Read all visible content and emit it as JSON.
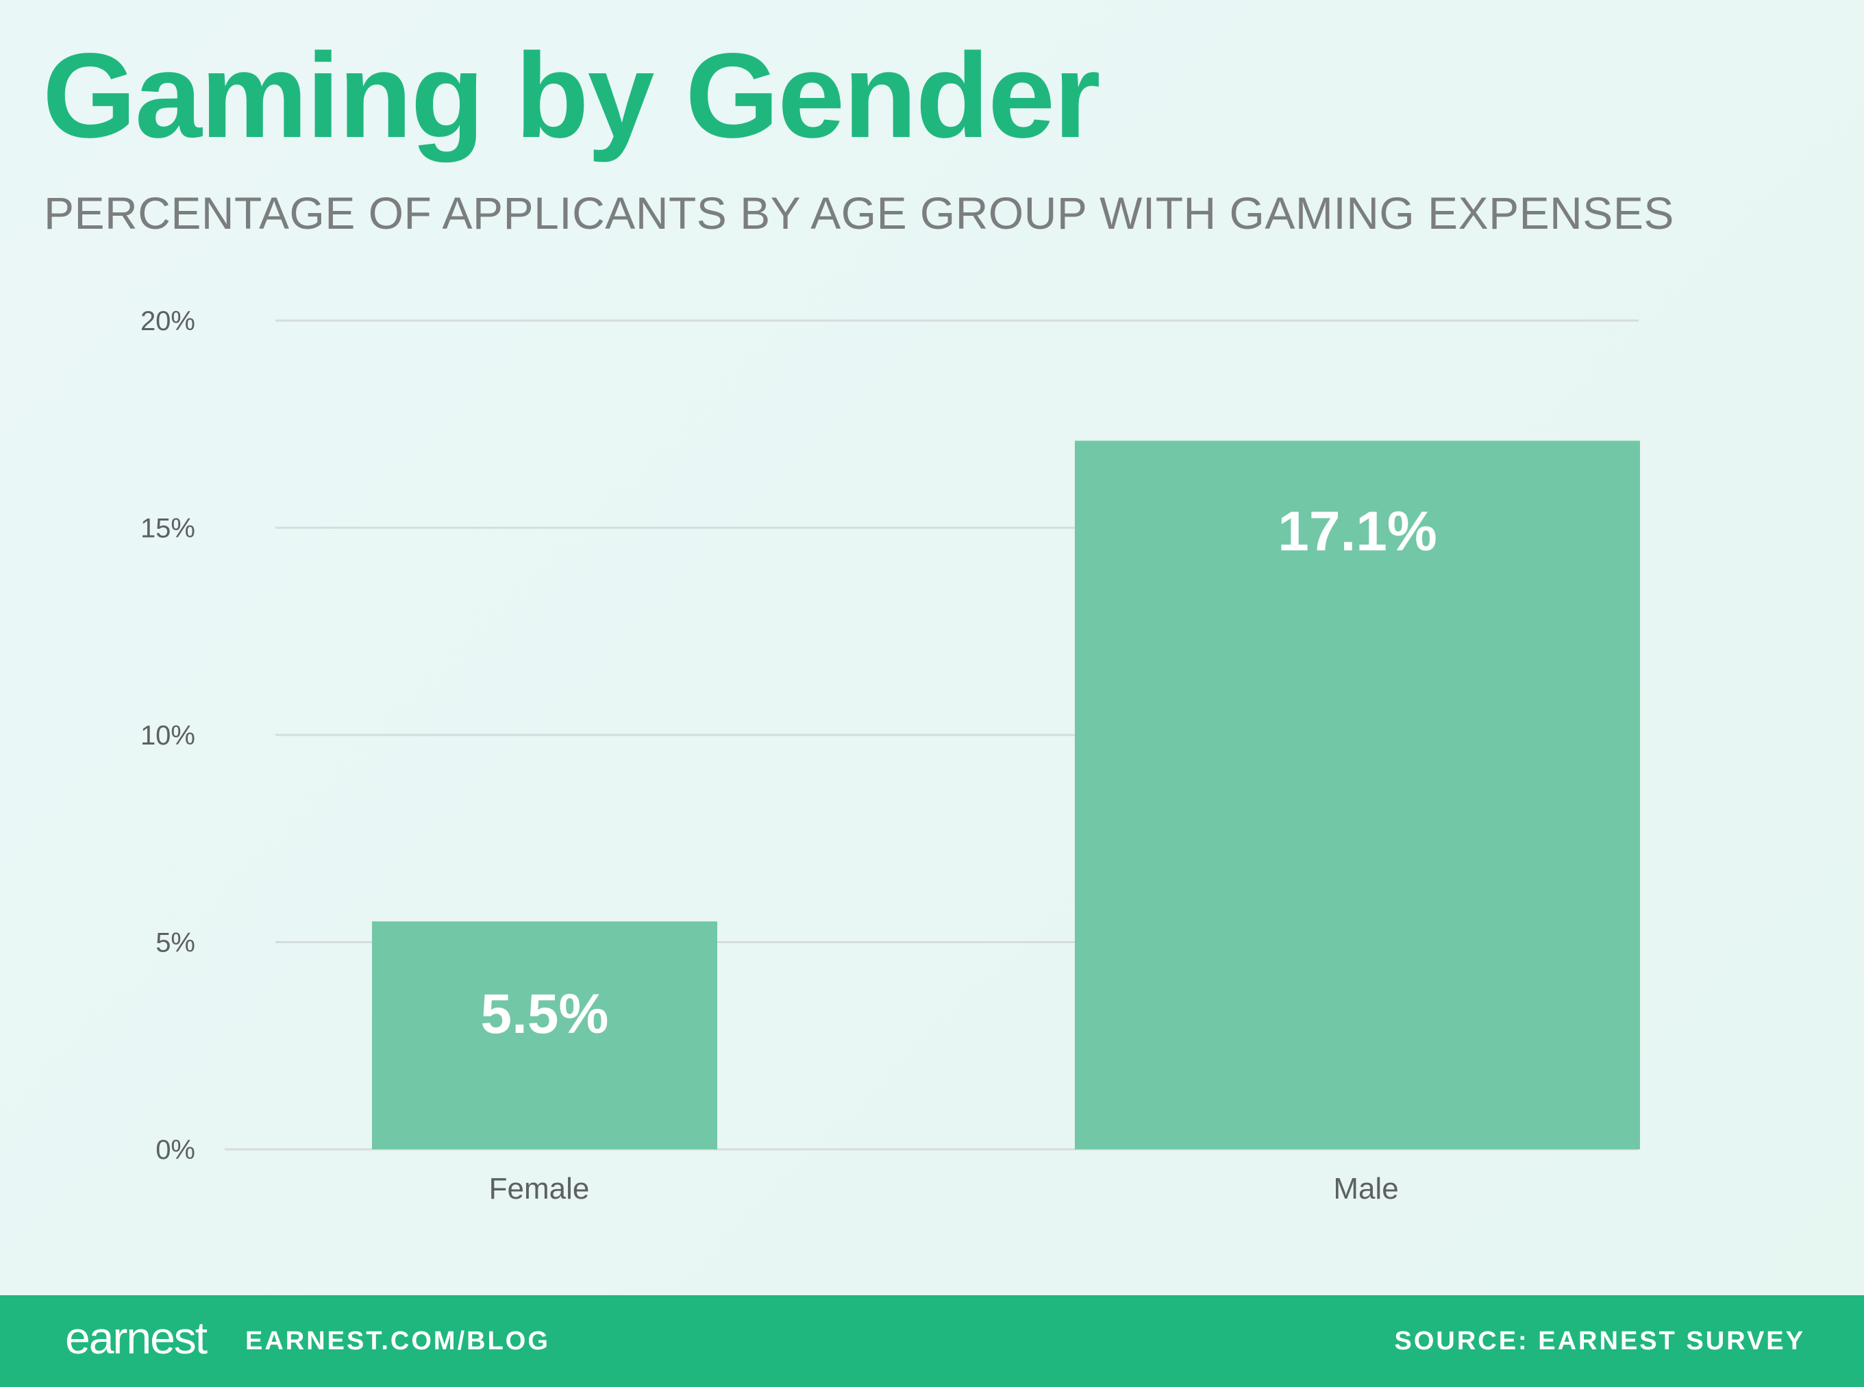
{
  "header": {
    "title": "Gaming by Gender",
    "subtitle": "PERCENTAGE OF APPLICANTS BY AGE GROUP WITH GAMING EXPENSES"
  },
  "chart_data": {
    "type": "bar",
    "categories": [
      "Female",
      "Male"
    ],
    "values": [
      5.5,
      17.1
    ],
    "data_labels": [
      "5.5%",
      "17.1%"
    ],
    "ylim": [
      0,
      20
    ],
    "yticks": [
      0,
      5,
      10,
      15,
      20
    ],
    "ytick_labels": [
      "0%",
      "5%",
      "10%",
      "15%",
      "20%"
    ],
    "grid": true,
    "bar_color": "#72c7a7",
    "title": "",
    "xlabel": "",
    "ylabel": ""
  },
  "footer": {
    "logo": "earnest",
    "url": "EARNEST.COM/BLOG",
    "source": "SOURCE: EARNEST SURVEY",
    "color": "#20b77f"
  }
}
